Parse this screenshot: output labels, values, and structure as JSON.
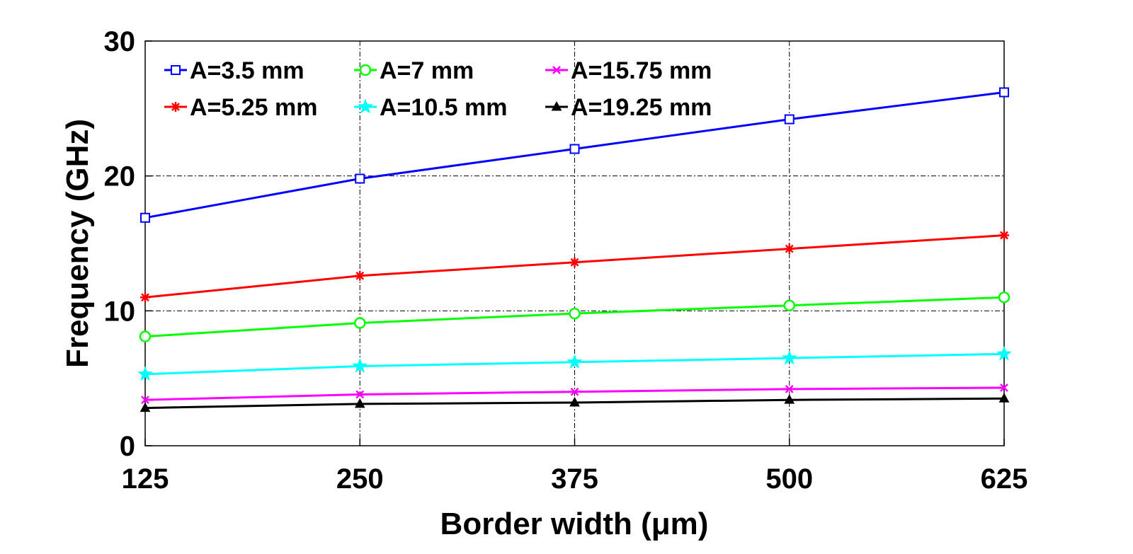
{
  "chart_data": {
    "type": "line",
    "title": "",
    "xlabel": "Border width (μm)",
    "ylabel": "Frequency (GHz)",
    "x": [
      125,
      250,
      375,
      500,
      625
    ],
    "x_ticks": [
      "125",
      "250",
      "375",
      "500",
      "625"
    ],
    "y_ticks": [
      "0",
      "10",
      "20",
      "30"
    ],
    "xlim": [
      125,
      625
    ],
    "ylim": [
      0,
      30
    ],
    "grid": true,
    "legend_position": "top-left",
    "series": [
      {
        "name": "A=3.5 mm",
        "color": "#0000ff",
        "marker": "square",
        "values": [
          16.9,
          19.8,
          22.0,
          24.2,
          26.2
        ]
      },
      {
        "name": "A=5.25 mm",
        "color": "#ff0000",
        "marker": "asterisk",
        "values": [
          11.0,
          12.6,
          13.6,
          14.6,
          15.6
        ]
      },
      {
        "name": "A=7 mm",
        "color": "#00ff00",
        "marker": "circle",
        "values": [
          8.1,
          9.1,
          9.8,
          10.4,
          11.0
        ]
      },
      {
        "name": "A=10.5 mm",
        "color": "#00ffff",
        "marker": "star",
        "values": [
          5.3,
          5.9,
          6.2,
          6.5,
          6.8
        ]
      },
      {
        "name": "A=15.75 mm",
        "color": "#ff00ff",
        "marker": "x",
        "values": [
          3.4,
          3.8,
          4.0,
          4.2,
          4.3
        ]
      },
      {
        "name": "A=19.25 mm",
        "color": "#000000",
        "marker": "triangle",
        "values": [
          2.8,
          3.1,
          3.2,
          3.4,
          3.5
        ]
      }
    ]
  }
}
